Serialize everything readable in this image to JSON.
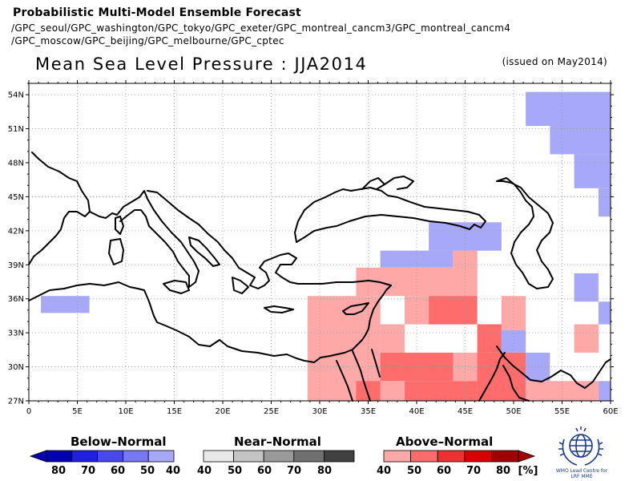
{
  "header": {
    "title": "Probabilistic Multi-Model Ensemble Forecast",
    "models_line1": "/GPC_seoul/GPC_washington/GPC_tokyo/GPC_exeter/GPC_montreal_cancm3/GPC_montreal_cancm4",
    "models_line2": "/GPC_moscow/GPC_beijing/GPC_melbourne/GPC_cptec"
  },
  "map": {
    "title": "Mean Sea Level Pressure : JJA2014",
    "issued": "(issued on May2014)",
    "lon_range": [
      0,
      60
    ],
    "lat_range": [
      27,
      55
    ],
    "grid": true,
    "x_ticks": [
      "0",
      "5E",
      "10E",
      "15E",
      "20E",
      "25E",
      "30E",
      "35E",
      "40E",
      "45E",
      "50E",
      "55E",
      "60E"
    ],
    "y_ticks": [
      "27N",
      "30N",
      "33N",
      "36N",
      "39N",
      "42N",
      "45N",
      "48N",
      "51N",
      "54N"
    ]
  },
  "legend": {
    "below": {
      "label": "Below–Normal",
      "values": [
        "80",
        "70",
        "60",
        "50",
        "40"
      ],
      "colors": [
        "#0000b0",
        "#2020e0",
        "#4848ee",
        "#7878f4",
        "#a8a8f8"
      ]
    },
    "near": {
      "label": "Near–Normal",
      "values": [
        "40",
        "50",
        "60",
        "70",
        "80"
      ],
      "colors": [
        "#e8e8e8",
        "#c4c4c4",
        "#9a9a9a",
        "#707070",
        "#404040"
      ]
    },
    "above": {
      "label": "Above–Normal",
      "values": [
        "40",
        "50",
        "60",
        "70",
        "80"
      ],
      "colors": [
        "#ffa8a8",
        "#ff6c6c",
        "#f03030",
        "#d80000",
        "#a00000"
      ]
    },
    "unit": "[%]"
  },
  "logo": {
    "caption_line1": "WMO Lead Centre for",
    "caption_line2": "LRF MME"
  },
  "chart_data": {
    "type": "heatmap",
    "title": "Mean Sea Level Pressure : JJA2014",
    "variable": "tercile probability (%)",
    "cells": [
      {
        "lon": [
          1.25,
          6.25
        ],
        "lat": [
          34.75,
          36.25
        ],
        "category": "below",
        "prob": 40
      },
      {
        "lon": [
          51.25,
          60
        ],
        "lat": [
          51.25,
          54.25
        ],
        "category": "below",
        "prob": 40
      },
      {
        "lon": [
          53.75,
          60
        ],
        "lat": [
          48.75,
          51.25
        ],
        "category": "below",
        "prob": 40
      },
      {
        "lon": [
          56.25,
          60
        ],
        "lat": [
          45.75,
          48.75
        ],
        "category": "below",
        "prob": 40
      },
      {
        "lon": [
          58.75,
          60
        ],
        "lat": [
          43.25,
          45.75
        ],
        "category": "below",
        "prob": 40
      },
      {
        "lon": [
          41.25,
          48.75
        ],
        "lat": [
          40.25,
          42.75
        ],
        "category": "below",
        "prob": 40
      },
      {
        "lon": [
          36.25,
          43.75
        ],
        "lat": [
          38.75,
          40.25
        ],
        "category": "below",
        "prob": 40
      },
      {
        "lon": [
          56.25,
          58.75
        ],
        "lat": [
          35.75,
          38.25
        ],
        "category": "below",
        "prob": 40
      },
      {
        "lon": [
          58.75,
          60
        ],
        "lat": [
          33.75,
          35.75
        ],
        "category": "below",
        "prob": 40
      },
      {
        "lon": [
          48.75,
          51.25
        ],
        "lat": [
          31.25,
          33.25
        ],
        "category": "below",
        "prob": 40
      },
      {
        "lon": [
          51.25,
          53.75
        ],
        "lat": [
          28.75,
          31.25
        ],
        "category": "below",
        "prob": 40
      },
      {
        "lon": [
          58.75,
          60
        ],
        "lat": [
          27,
          28.75
        ],
        "category": "below",
        "prob": 40
      },
      {
        "lon": [
          43.75,
          46.25
        ],
        "lat": [
          36.25,
          40.25
        ],
        "category": "above",
        "prob": 40
      },
      {
        "lon": [
          33.75,
          43.75
        ],
        "lat": [
          36.25,
          38.75
        ],
        "category": "above",
        "prob": 40
      },
      {
        "lon": [
          28.75,
          36.25
        ],
        "lat": [
          27,
          36.25
        ],
        "category": "above",
        "prob": 40
      },
      {
        "lon": [
          36.25,
          38.75
        ],
        "lat": [
          31.25,
          33.75
        ],
        "category": "above",
        "prob": 40
      },
      {
        "lon": [
          38.75,
          41.25
        ],
        "lat": [
          33.75,
          36.25
        ],
        "category": "above",
        "prob": 40
      },
      {
        "lon": [
          48.75,
          51.25
        ],
        "lat": [
          33.25,
          36.25
        ],
        "category": "above",
        "prob": 40
      },
      {
        "lon": [
          56.25,
          58.75
        ],
        "lat": [
          31.25,
          33.75
        ],
        "category": "above",
        "prob": 40
      },
      {
        "lon": [
          43.75,
          46.25
        ],
        "lat": [
          28.75,
          31.25
        ],
        "category": "above",
        "prob": 40
      },
      {
        "lon": [
          51.25,
          58.75
        ],
        "lat": [
          27,
          28.75
        ],
        "category": "above",
        "prob": 40
      },
      {
        "lon": [
          36.25,
          38.75
        ],
        "lat": [
          27,
          28.75
        ],
        "category": "above",
        "prob": 40
      },
      {
        "lon": [
          41.25,
          46.25
        ],
        "lat": [
          33.75,
          36.25
        ],
        "category": "above",
        "prob": 50
      },
      {
        "lon": [
          46.25,
          48.75
        ],
        "lat": [
          31.25,
          33.75
        ],
        "category": "above",
        "prob": 50
      },
      {
        "lon": [
          36.25,
          43.75
        ],
        "lat": [
          28.75,
          31.25
        ],
        "category": "above",
        "prob": 50
      },
      {
        "lon": [
          46.25,
          51.25
        ],
        "lat": [
          27,
          31.25
        ],
        "category": "above",
        "prob": 50
      },
      {
        "lon": [
          38.75,
          46.25
        ],
        "lat": [
          27,
          28.75
        ],
        "category": "above",
        "prob": 50
      },
      {
        "lon": [
          33.75,
          36.25
        ],
        "lat": [
          27,
          28.75
        ],
        "category": "above",
        "prob": 50
      }
    ]
  }
}
